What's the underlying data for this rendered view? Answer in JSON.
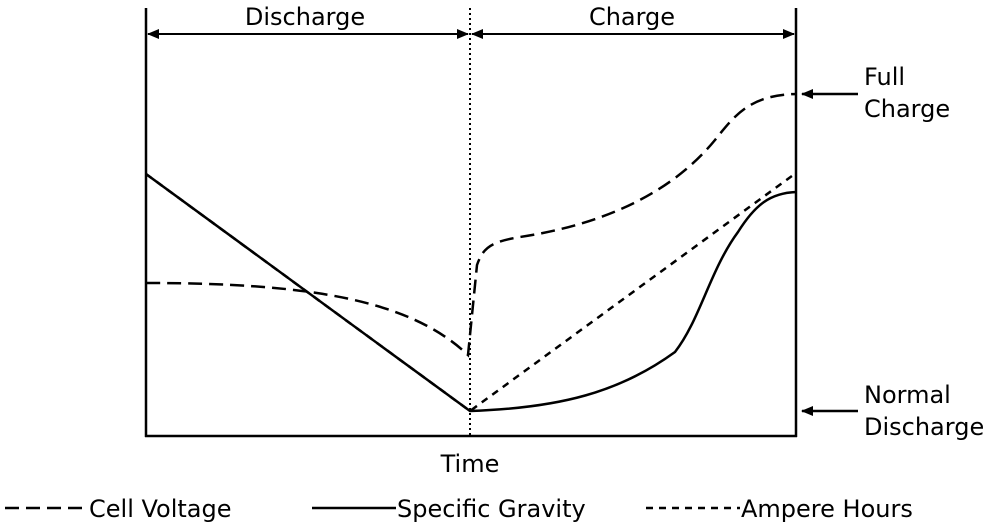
{
  "diagram": {
    "phases": {
      "discharge": "Discharge",
      "charge": "Charge"
    },
    "right_labels": {
      "full_line1": "Full",
      "full_line2": "Charge",
      "normal_line1": "Normal",
      "normal_line2": "Discharge"
    },
    "x_axis_label": "Time",
    "legend": [
      {
        "name": "Cell Voltage",
        "dash": "long"
      },
      {
        "name": "Specific Gravity",
        "dash": "solid"
      },
      {
        "name": "Ampere Hours",
        "dash": "short"
      }
    ],
    "colors": {
      "line": "#000000",
      "background": "#ffffff"
    }
  }
}
